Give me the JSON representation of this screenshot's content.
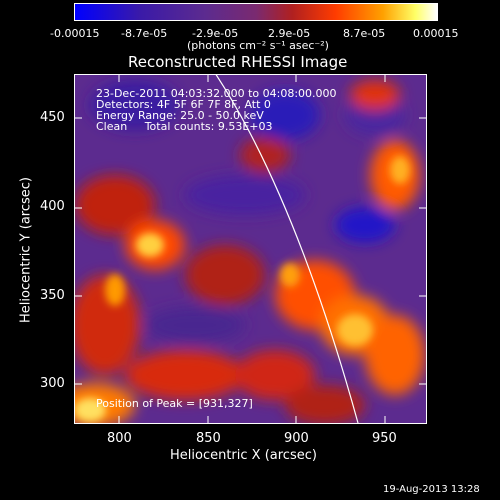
{
  "colorbar": {
    "ticks": [
      "-0.00015",
      "-8.7e-05",
      "-2.9e-05",
      "2.9e-05",
      "8.7e-05",
      "0.00015"
    ],
    "unit_label": "(photons cm⁻² s⁻¹ asec⁻²)",
    "colors": [
      "#0000ff",
      "#3a1a9c",
      "#5c2b8f",
      "#7a2a75",
      "#b0221b",
      "#ff3c00",
      "#ff9a00",
      "#ffff66",
      "#ffffff"
    ]
  },
  "title": "Reconstructed RHESSI Image",
  "annotation": {
    "line1": "23-Dec-2011 04:03:32.000 to 04:08:00.000",
    "line2": "Detectors: 4F 5F 6F 7F 8F, Att 0",
    "line3": "Energy Range: 25.0 - 50.0 keV",
    "line4": "Clean     Total counts: 9.53E+03",
    "peak": "Position of Peak = [931,327]"
  },
  "x_axis": {
    "label": "Heliocentric X (arcsec)",
    "ticks": [
      "800",
      "850",
      "900",
      "950"
    ]
  },
  "y_axis": {
    "label": "Heliocentric Y (arcsec)",
    "ticks": [
      "300",
      "350",
      "400",
      "450"
    ]
  },
  "timestamp": "19-Aug-2013 13:28"
}
